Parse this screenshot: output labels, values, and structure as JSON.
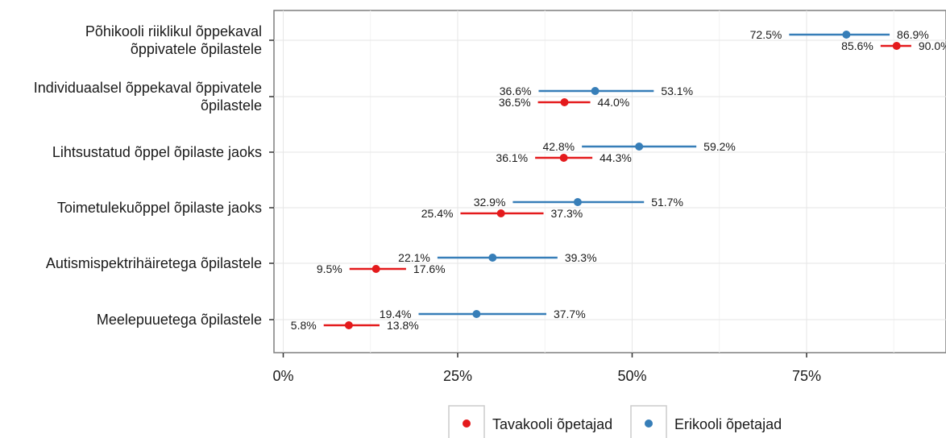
{
  "chart_data": {
    "type": "dot-interval",
    "xlim": [
      0,
      0.95
    ],
    "x_ticks": [
      {
        "value": 0,
        "label": "0%"
      },
      {
        "value": 0.25,
        "label": "25%"
      },
      {
        "value": 0.5,
        "label": "50%"
      },
      {
        "value": 0.75,
        "label": "75%"
      }
    ],
    "categories": [
      [
        "Põhikooli riiklikul õppekaval",
        "õppivatele õpilastele"
      ],
      [
        "Individuaalsel õppekaval õppivatele",
        "õpilastele"
      ],
      [
        "Lihtsustatud õppel õpilaste jaoks"
      ],
      [
        "Toimetulekuõppel õpilaste jaoks"
      ],
      [
        "Autismispektrihäiretega õpilastele"
      ],
      [
        "Meelepuuetega õpilastele"
      ]
    ],
    "series": [
      {
        "name": "Erikooli õpetajad",
        "color": "#377eb8",
        "points": [
          {
            "low": 0.725,
            "mid": 0.807,
            "high": 0.869,
            "low_label": "72.5%",
            "high_label": "86.9%"
          },
          {
            "low": 0.366,
            "mid": 0.447,
            "high": 0.531,
            "low_label": "36.6%",
            "high_label": "53.1%"
          },
          {
            "low": 0.428,
            "mid": 0.51,
            "high": 0.592,
            "low_label": "42.8%",
            "high_label": "59.2%"
          },
          {
            "low": 0.329,
            "mid": 0.422,
            "high": 0.517,
            "low_label": "32.9%",
            "high_label": "51.7%"
          },
          {
            "low": 0.221,
            "mid": 0.3,
            "high": 0.393,
            "low_label": "22.1%",
            "high_label": "39.3%"
          },
          {
            "low": 0.194,
            "mid": 0.277,
            "high": 0.377,
            "low_label": "19.4%",
            "high_label": "37.7%"
          }
        ]
      },
      {
        "name": "Tavakooli õpetajad",
        "color": "#e41a1c",
        "points": [
          {
            "low": 0.856,
            "mid": 0.879,
            "high": 0.9,
            "low_label": "85.6%",
            "high_label": "90.0%"
          },
          {
            "low": 0.365,
            "mid": 0.403,
            "high": 0.44,
            "low_label": "36.5%",
            "high_label": "44.0%"
          },
          {
            "low": 0.361,
            "mid": 0.402,
            "high": 0.443,
            "low_label": "36.1%",
            "high_label": "44.3%"
          },
          {
            "low": 0.254,
            "mid": 0.312,
            "high": 0.373,
            "low_label": "25.4%",
            "high_label": "37.3%"
          },
          {
            "low": 0.095,
            "mid": 0.133,
            "high": 0.176,
            "low_label": "9.5%",
            "high_label": "17.6%"
          },
          {
            "low": 0.058,
            "mid": 0.094,
            "high": 0.138,
            "low_label": "5.8%",
            "high_label": "13.8%"
          }
        ]
      }
    ],
    "legend": {
      "position": "bottom",
      "items": [
        {
          "label": "Tavakooli õpetajad",
          "color": "#e41a1c"
        },
        {
          "label": "Erikooli õpetajad",
          "color": "#377eb8"
        }
      ]
    },
    "grid": true
  }
}
